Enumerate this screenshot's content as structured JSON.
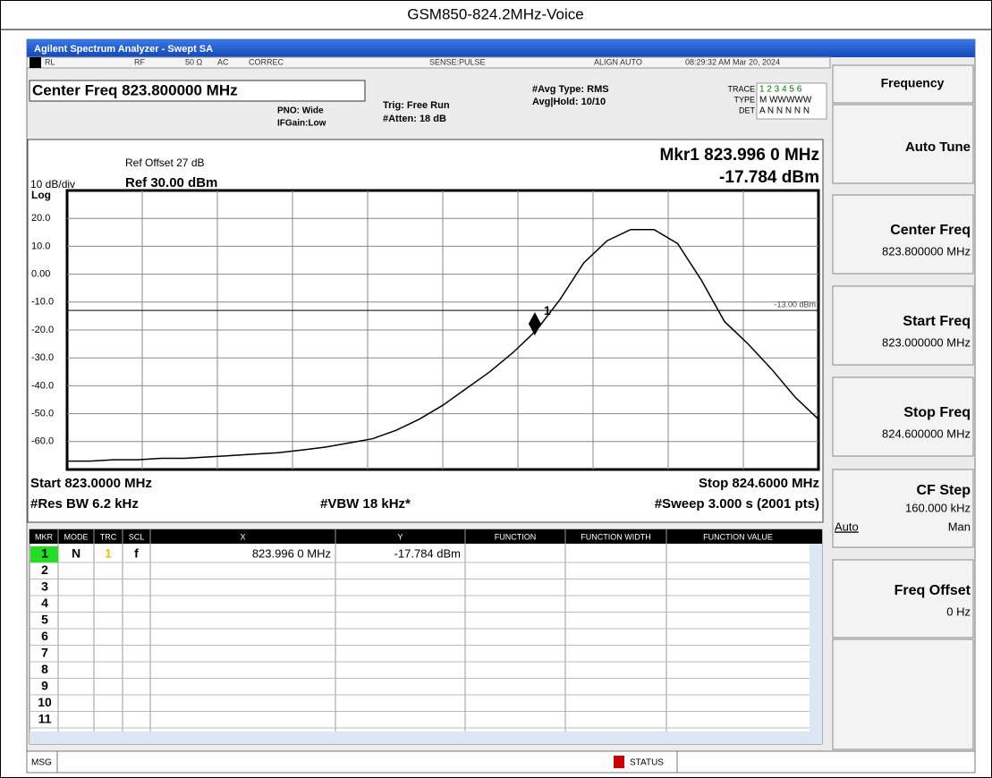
{
  "title": "GSM850-824.2MHz-Voice",
  "window_title": "Agilent Spectrum Analyzer - Swept SA",
  "status": {
    "rl": "RL",
    "rf": "RF",
    "impedance": "50 Ω",
    "coupling": "AC",
    "correc": "CORREC",
    "sense": "SENSE:PULSE",
    "align": "ALIGN AUTO",
    "time": "08:29:32 AM Mar 20, 2024"
  },
  "settings": {
    "center_freq": "Center Freq 823.800000 MHz",
    "pno": "PNO: Wide",
    "ifgain": "IFGain:Low",
    "trig": "Trig: Free Run",
    "atten": "#Atten: 18 dB",
    "avg_type": "#Avg Type: RMS",
    "avg_hold": "Avg|Hold: 10/10",
    "trace_label": "TRACE",
    "trace_value": "1 2 3 4 5 6",
    "type_label": "TYPE",
    "type_value": "M WWWWW",
    "det_label": "DET",
    "det_value": "A N N N N N"
  },
  "chart_data": {
    "type": "line",
    "ref_offset": "Ref Offset 27 dB",
    "scale": "10 dB/div",
    "ref_level": "Ref 30.00 dBm",
    "scale_type": "Log",
    "marker_freq": "Mkr1 823.996 0 MHz",
    "marker_level": "-17.784 dBm",
    "start": "Start 823.0000 MHz",
    "stop": "Stop 824.6000 MHz",
    "rbw": "#Res BW 6.2 kHz",
    "vbw": "#VBW 18 kHz*",
    "sweep": "#Sweep  3.000 s (2001 pts)",
    "xlim": [
      823.0,
      824.6
    ],
    "ylim": [
      -70,
      30
    ],
    "yticks": [
      {
        "value": 20,
        "label": "20.0"
      },
      {
        "value": 10,
        "label": "10.0"
      },
      {
        "value": 0,
        "label": "0.00"
      },
      {
        "value": -10,
        "label": "-10.0"
      },
      {
        "value": -20,
        "label": "-20.0"
      },
      {
        "value": -30,
        "label": "-30.0"
      },
      {
        "value": -40,
        "label": "-40.0"
      },
      {
        "value": -50,
        "label": "-50.0"
      },
      {
        "value": -60,
        "label": "-60.0"
      }
    ],
    "grid": true,
    "color": "#000000",
    "x": [
      823.0,
      823.05,
      823.1,
      823.15,
      823.2,
      823.25,
      823.3,
      823.35,
      823.4,
      823.45,
      823.5,
      823.55,
      823.6,
      823.65,
      823.7,
      823.75,
      823.8,
      823.85,
      823.9,
      823.95,
      824.0,
      824.05,
      824.1,
      824.15,
      824.2,
      824.25,
      824.3,
      824.35,
      824.4,
      824.45,
      824.5,
      824.55,
      824.6
    ],
    "values": [
      -67,
      -67,
      -66.5,
      -66.5,
      -66,
      -66,
      -65.5,
      -65,
      -64.5,
      -64,
      -63,
      -62,
      -60.5,
      -59,
      -56,
      -52,
      -47,
      -41,
      -35,
      -28,
      -20,
      -9,
      4,
      12,
      16,
      16,
      11,
      -2,
      -17,
      -25,
      -34,
      -44,
      -52
    ],
    "marker": {
      "x": 823.996,
      "y": -17.784,
      "label": "1"
    },
    "threshold": {
      "value": -13,
      "label": "-13.00 dBm"
    }
  },
  "table": {
    "headers": [
      "MKR",
      "MODE",
      "TRC",
      "SCL",
      "X",
      "Y",
      "FUNCTION",
      "FUNCTION WIDTH",
      "FUNCTION VALUE"
    ],
    "rows": [
      [
        "1",
        "N",
        "1",
        "f",
        "823.996 0 MHz",
        "-17.784 dBm"
      ],
      [
        "2"
      ],
      [
        "3"
      ],
      [
        "4"
      ],
      [
        "5"
      ],
      [
        "6"
      ],
      [
        "7"
      ],
      [
        "8"
      ],
      [
        "9"
      ],
      [
        "10"
      ],
      [
        "11"
      ]
    ]
  },
  "softkeys": {
    "menu": "Frequency",
    "auto_tune": "Auto Tune",
    "center_label": "Center Freq",
    "center_value": "823.800000 MHz",
    "start_label": "Start Freq",
    "start_value": "823.000000 MHz",
    "stop_label": "Stop Freq",
    "stop_value": "824.600000 MHz",
    "cf_step_label": "CF Step",
    "cf_step_value": "160.000 kHz",
    "cf_auto": "Auto",
    "cf_man": "Man",
    "offset_label": "Freq Offset",
    "offset_value": "0 Hz"
  },
  "footer": {
    "msg": "MSG",
    "status": "STATUS"
  }
}
